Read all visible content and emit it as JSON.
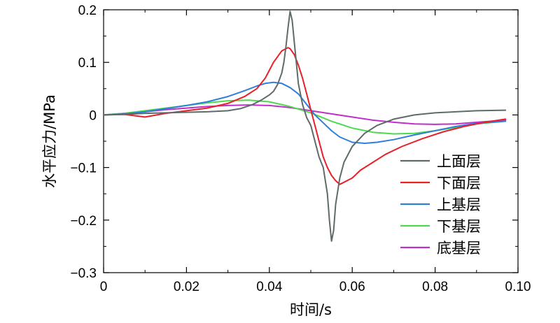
{
  "chart_data": {
    "type": "line",
    "xlabel": "时间/s",
    "ylabel": "水平应力/MPa",
    "xlim": [
      0,
      0.1
    ],
    "ylim": [
      -0.3,
      0.2
    ],
    "x_ticks": [
      0,
      0.02,
      0.04,
      0.06,
      0.08,
      0.1
    ],
    "x_tick_labels": [
      "0",
      "0.02",
      "0.04",
      "0.06",
      "0.08",
      "0.10"
    ],
    "y_ticks": [
      0.2,
      0.1,
      0,
      -0.1,
      -0.2,
      -0.3
    ],
    "y_tick_labels": [
      "0.2",
      "0.1",
      "0",
      "−0.1",
      "−0.2",
      "−0.3"
    ],
    "grid": false,
    "legend_position": "bottom-right",
    "series": [
      {
        "name": "上面层",
        "color": "#5f6b6b",
        "x": [
          0,
          0.005,
          0.01,
          0.015,
          0.02,
          0.025,
          0.03,
          0.033,
          0.036,
          0.038,
          0.04,
          0.041,
          0.042,
          0.043,
          0.0435,
          0.044,
          0.0445,
          0.045,
          0.0455,
          0.046,
          0.0465,
          0.047,
          0.048,
          0.049,
          0.05,
          0.051,
          0.052,
          0.053,
          0.054,
          0.0545,
          0.055,
          0.0555,
          0.056,
          0.057,
          0.058,
          0.06,
          0.063,
          0.066,
          0.07,
          0.075,
          0.08,
          0.085,
          0.09,
          0.097
        ],
        "values": [
          0,
          0.001,
          0.003,
          0.004,
          0.005,
          0.006,
          0.008,
          0.012,
          0.02,
          0.028,
          0.038,
          0.045,
          0.058,
          0.08,
          0.1,
          0.13,
          0.165,
          0.197,
          0.18,
          0.14,
          0.1,
          0.06,
          0.02,
          -0.005,
          -0.02,
          -0.05,
          -0.08,
          -0.1,
          -0.15,
          -0.2,
          -0.24,
          -0.22,
          -0.17,
          -0.12,
          -0.09,
          -0.06,
          -0.035,
          -0.02,
          -0.008,
          0.0,
          0.004,
          0.006,
          0.008,
          0.009
        ]
      },
      {
        "name": "下面层",
        "color": "#e8202a",
        "x": [
          0,
          0.005,
          0.01,
          0.015,
          0.02,
          0.025,
          0.03,
          0.034,
          0.037,
          0.039,
          0.041,
          0.043,
          0.0445,
          0.045,
          0.046,
          0.047,
          0.048,
          0.049,
          0.05,
          0.051,
          0.052,
          0.053,
          0.054,
          0.055,
          0.056,
          0.057,
          0.058,
          0.06,
          0.062,
          0.065,
          0.068,
          0.072,
          0.077,
          0.082,
          0.087,
          0.092,
          0.097
        ],
        "values": [
          0,
          0.001,
          -0.004,
          0.003,
          0.008,
          0.013,
          0.022,
          0.035,
          0.05,
          0.07,
          0.1,
          0.122,
          0.128,
          0.126,
          0.115,
          0.095,
          0.07,
          0.04,
          0.01,
          -0.02,
          -0.05,
          -0.08,
          -0.1,
          -0.115,
          -0.125,
          -0.132,
          -0.128,
          -0.12,
          -0.105,
          -0.09,
          -0.075,
          -0.06,
          -0.045,
          -0.032,
          -0.022,
          -0.014,
          -0.008
        ]
      },
      {
        "name": "上基层",
        "color": "#2f7fd8",
        "x": [
          0,
          0.005,
          0.01,
          0.015,
          0.02,
          0.025,
          0.03,
          0.034,
          0.037,
          0.039,
          0.041,
          0.043,
          0.045,
          0.047,
          0.049,
          0.051,
          0.053,
          0.055,
          0.057,
          0.06,
          0.063,
          0.066,
          0.07,
          0.075,
          0.08,
          0.085,
          0.09,
          0.097
        ],
        "values": [
          0,
          0.002,
          0.006,
          0.012,
          0.018,
          0.025,
          0.035,
          0.046,
          0.055,
          0.06,
          0.062,
          0.06,
          0.052,
          0.04,
          0.02,
          0.0,
          -0.015,
          -0.03,
          -0.042,
          -0.052,
          -0.054,
          -0.052,
          -0.047,
          -0.038,
          -0.03,
          -0.022,
          -0.016,
          -0.012
        ]
      },
      {
        "name": "下基层",
        "color": "#4ed84e",
        "x": [
          0,
          0.005,
          0.01,
          0.015,
          0.02,
          0.025,
          0.03,
          0.035,
          0.04,
          0.045,
          0.05,
          0.055,
          0.06,
          0.065,
          0.07,
          0.075,
          0.08,
          0.085,
          0.09,
          0.097
        ],
        "values": [
          0,
          0.003,
          0.008,
          0.013,
          0.018,
          0.023,
          0.027,
          0.028,
          0.025,
          0.016,
          0.004,
          -0.012,
          -0.025,
          -0.033,
          -0.036,
          -0.035,
          -0.03,
          -0.024,
          -0.017,
          -0.012
        ]
      },
      {
        "name": "底基层",
        "color": "#c030c8",
        "x": [
          0,
          0.005,
          0.01,
          0.015,
          0.02,
          0.025,
          0.03,
          0.035,
          0.04,
          0.045,
          0.05,
          0.055,
          0.06,
          0.065,
          0.07,
          0.075,
          0.08,
          0.085,
          0.09,
          0.097
        ],
        "values": [
          0,
          0.003,
          0.006,
          0.01,
          0.013,
          0.016,
          0.018,
          0.019,
          0.018,
          0.014,
          0.008,
          0.002,
          -0.004,
          -0.01,
          -0.014,
          -0.017,
          -0.018,
          -0.017,
          -0.014,
          -0.01
        ]
      }
    ]
  }
}
